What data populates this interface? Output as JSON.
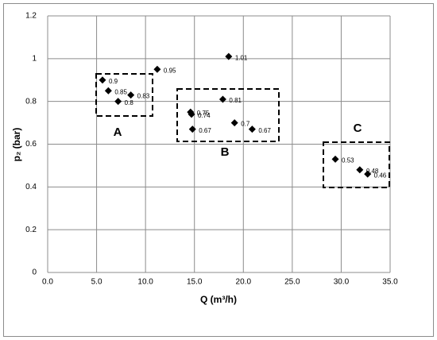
{
  "chart_data": {
    "type": "scatter",
    "x_label": "Q (m³/h)",
    "y_label": "p₂ (bar)",
    "x": [
      5.6,
      6.2,
      7.2,
      8.5,
      11.2,
      18.5,
      14.6,
      14.7,
      17.9,
      14.8,
      19.1,
      20.9,
      29.4,
      31.9,
      32.7
    ],
    "values": [
      0.9,
      0.85,
      0.8,
      0.83,
      0.95,
      1.01,
      0.75,
      0.74,
      0.81,
      0.67,
      0.7,
      0.67,
      0.53,
      0.48,
      0.46
    ],
    "color": "#000000",
    "xlim": [
      0,
      35
    ],
    "xticks": [
      {
        "value": 0,
        "label": "0.0"
      },
      {
        "value": 5,
        "label": "5.0"
      },
      {
        "value": 10,
        "label": "10.0"
      },
      {
        "value": 15,
        "label": "15.0"
      },
      {
        "value": 20,
        "label": "20.0"
      },
      {
        "value": 25,
        "label": "25.0"
      },
      {
        "value": 30,
        "label": "30.0"
      },
      {
        "value": 35,
        "label": "35.0"
      }
    ],
    "ylim": [
      0,
      1.2
    ],
    "yticks": [
      0,
      0.2,
      0.4,
      0.6,
      0.8,
      1,
      1.2
    ],
    "grid": true,
    "annotations": [
      "A",
      "B",
      "C"
    ]
  }
}
